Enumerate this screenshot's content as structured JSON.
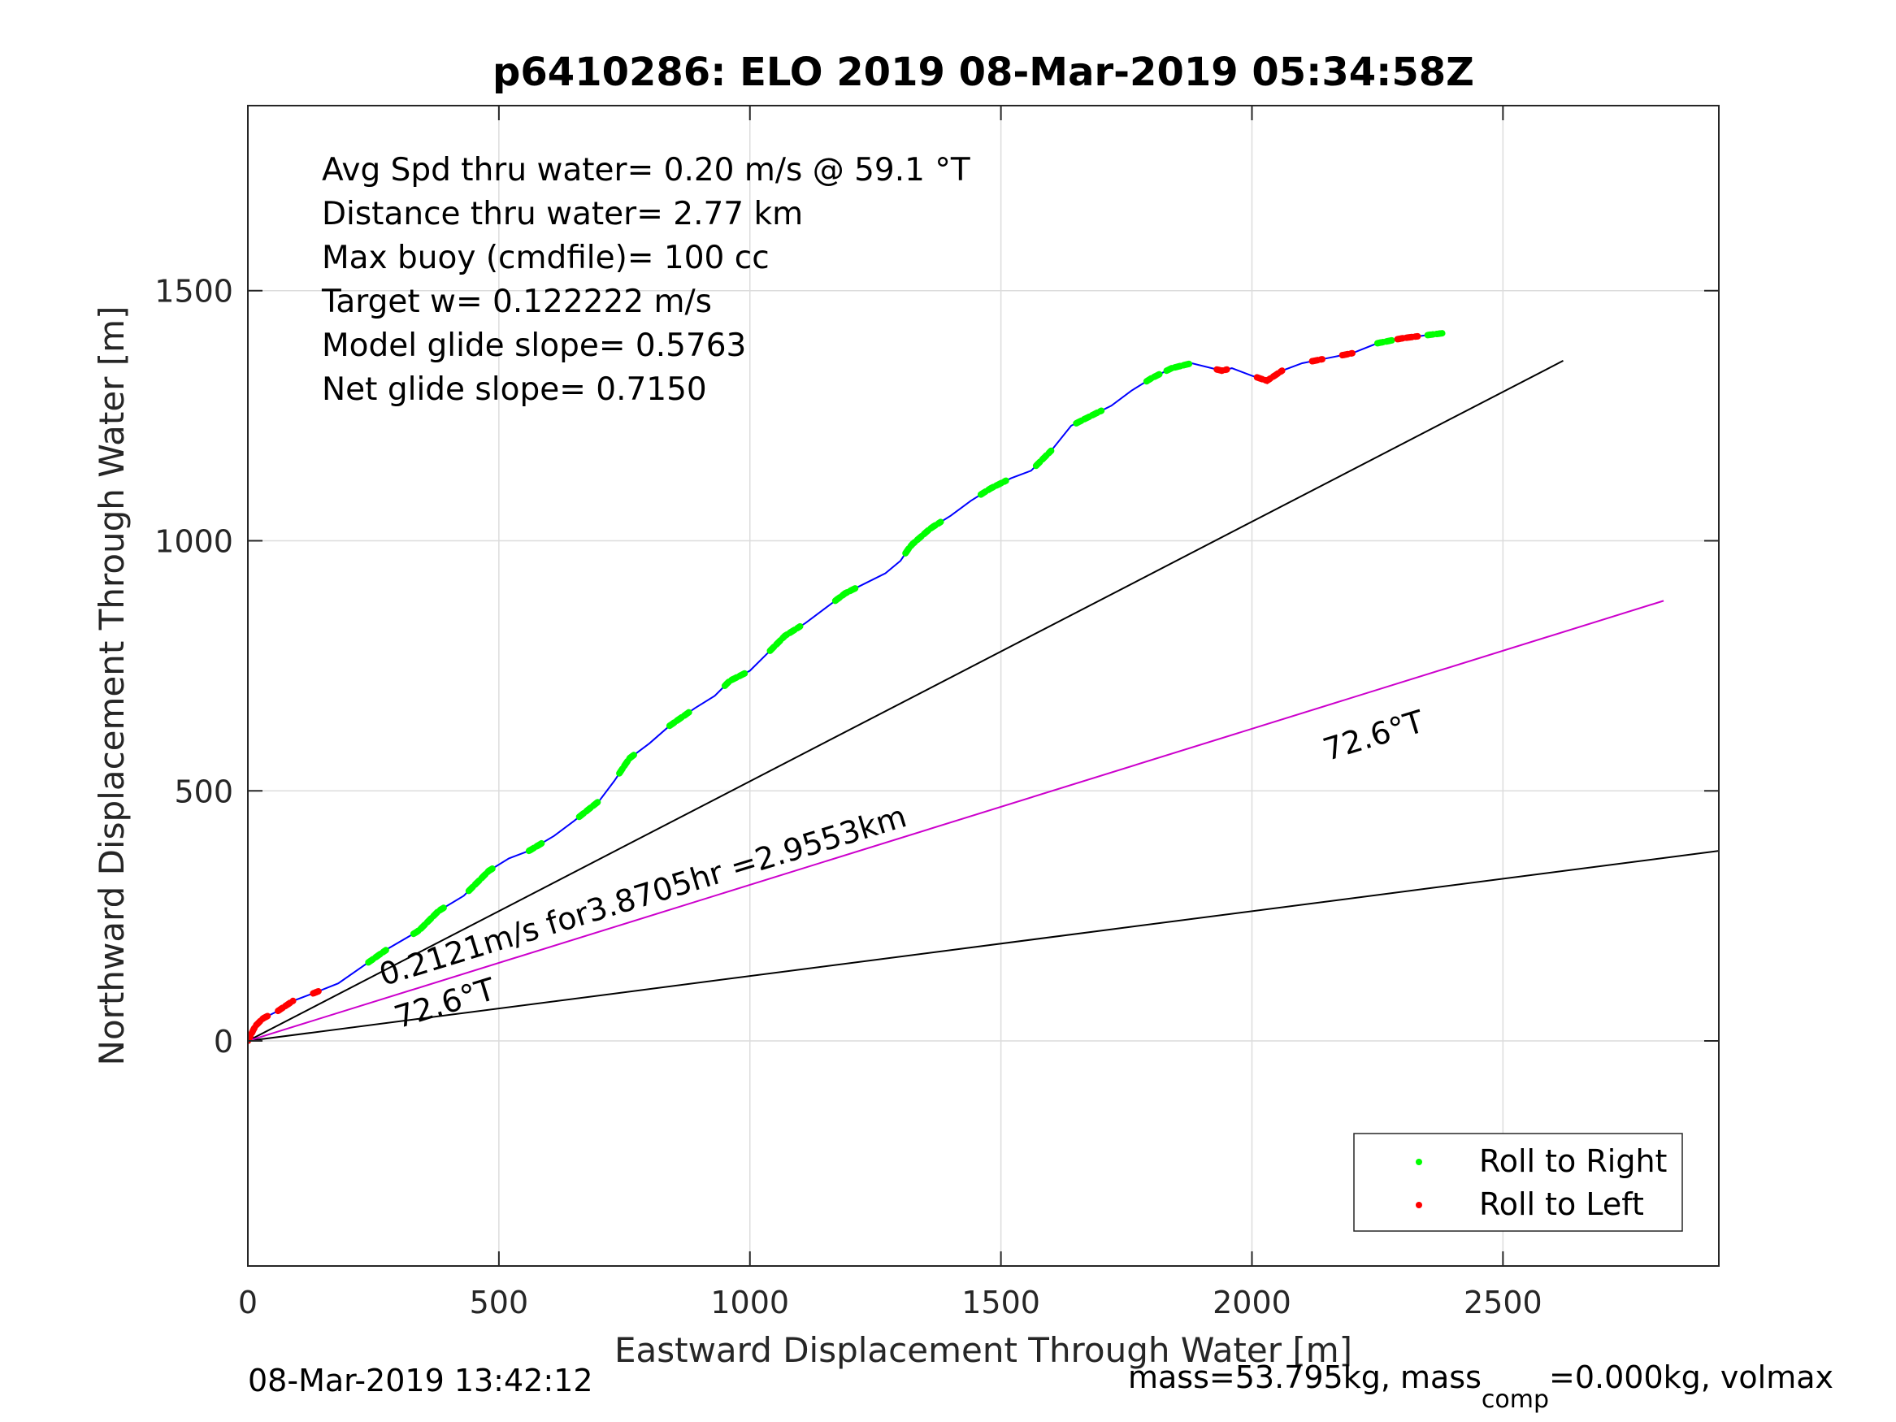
{
  "chart_data": {
    "type": "line",
    "title": "p6410286: ELO 2019 08-Mar-2019 05:34:58Z",
    "xlabel": "Eastward Displacement Through Water [m]",
    "ylabel": "Northward Displacement Through Water [m]",
    "xlim": [
      0,
      2930
    ],
    "ylim": [
      -450,
      1870
    ],
    "xticks": [
      0,
      500,
      1000,
      1500,
      2000,
      2500
    ],
    "yticks": [
      0,
      500,
      1000,
      1500
    ],
    "xtick_labels": [
      "0",
      "500",
      "1000",
      "1500",
      "2000",
      "2500"
    ],
    "ytick_labels": [
      "0",
      "500",
      "1000",
      "1500"
    ],
    "grid": true,
    "legend_position": "bottom-right",
    "annotations": [
      "Avg Spd thru water=  0.20 m/s @  59.1 °T",
      "Distance thru water=  2.77 km",
      "Max buoy (cmdfile)= 100 cc",
      "Target w= 0.122222 m/s",
      "Model glide slope= 0.5763",
      "Net glide slope= 0.7150"
    ],
    "track": {
      "color": "#0000ff",
      "x": [
        0,
        15,
        30,
        60,
        90,
        130,
        180,
        230,
        280,
        340,
        380,
        430,
        480,
        520,
        560,
        610,
        650,
        700,
        730,
        760,
        800,
        840,
        890,
        930,
        960,
        1000,
        1030,
        1070,
        1110,
        1150,
        1190,
        1230,
        1270,
        1300,
        1320,
        1360,
        1400,
        1440,
        1480,
        1520,
        1560,
        1600,
        1640,
        1680,
        1720,
        1760,
        1800,
        1840,
        1880,
        1920,
        1940,
        1960,
        2000,
        2030,
        2060,
        2100,
        2150,
        2200,
        2250,
        2300,
        2340,
        2380
      ],
      "y": [
        0,
        30,
        45,
        60,
        80,
        95,
        115,
        150,
        185,
        220,
        260,
        290,
        340,
        365,
        380,
        410,
        440,
        480,
        520,
        565,
        595,
        630,
        665,
        690,
        720,
        740,
        770,
        810,
        835,
        865,
        895,
        915,
        935,
        960,
        990,
        1025,
        1050,
        1080,
        1105,
        1125,
        1140,
        1180,
        1230,
        1250,
        1270,
        1300,
        1325,
        1345,
        1355,
        1345,
        1340,
        1345,
        1330,
        1320,
        1340,
        1355,
        1365,
        1375,
        1395,
        1405,
        1410,
        1415
      ]
    },
    "roll_right_segments": [
      [
        240,
        275
      ],
      [
        330,
        390
      ],
      [
        440,
        490
      ],
      [
        560,
        590
      ],
      [
        660,
        700
      ],
      [
        740,
        770
      ],
      [
        840,
        880
      ],
      [
        950,
        990
      ],
      [
        1040,
        1100
      ],
      [
        1170,
        1210
      ],
      [
        1310,
        1380
      ],
      [
        1460,
        1510
      ],
      [
        1570,
        1600
      ],
      [
        1650,
        1700
      ],
      [
        1790,
        1820
      ],
      [
        1830,
        1880
      ],
      [
        2250,
        2280
      ],
      [
        2350,
        2380
      ]
    ],
    "roll_left_segments": [
      [
        0,
        40
      ],
      [
        60,
        90
      ],
      [
        130,
        145
      ],
      [
        1930,
        1950
      ],
      [
        2010,
        2060
      ],
      [
        2120,
        2140
      ],
      [
        2180,
        2200
      ],
      [
        2290,
        2330
      ]
    ],
    "reference_lines": [
      {
        "color": "#000000",
        "x": [
          0,
          2620
        ],
        "y": [
          0,
          1360
        ]
      },
      {
        "color": "#000000",
        "x": [
          0,
          2930
        ],
        "y": [
          0,
          380
        ]
      },
      {
        "color": "#cc00cc",
        "x": [
          0,
          2820
        ],
        "y": [
          0,
          880
        ]
      }
    ],
    "line_labels": [
      {
        "text": "0.2121m/s for3.8705hr =2.9553km",
        "x": 270,
        "y": 110,
        "angle": 17
      },
      {
        "text": "72.6°T",
        "x": 300,
        "y": 25,
        "angle": 17
      },
      {
        "text": "72.6°T",
        "x": 2150,
        "y": 560,
        "angle": 17
      }
    ],
    "legend": [
      {
        "label": "Roll to Right",
        "color": "#00ff00"
      },
      {
        "label": "Roll to Left",
        "color": "#ff0000"
      }
    ],
    "footer_left": "08-Mar-2019 13:42:12",
    "footer_right": {
      "part1": "mass=53.795kg, mass",
      "sub": "comp",
      "part2": "=0.000kg, volmax"
    }
  }
}
